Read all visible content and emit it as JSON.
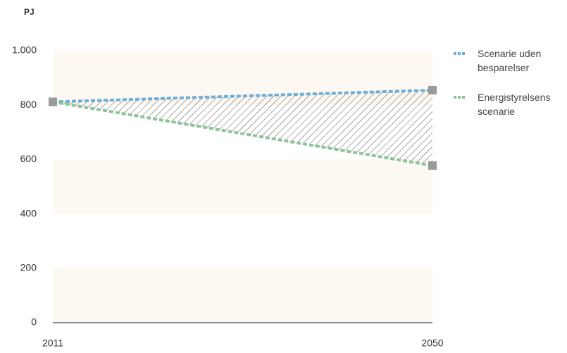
{
  "chart_data": {
    "type": "line",
    "y_label": "PJ",
    "x": [
      2011,
      2050
    ],
    "xlim": [
      2011,
      2050
    ],
    "xticks": [
      2011,
      2050
    ],
    "ylim": [
      0,
      1000
    ],
    "yticks": [
      0,
      200,
      400,
      600,
      800,
      {
        "value": 1000,
        "label": "1.000"
      }
    ],
    "series": [
      {
        "name": "Scenarie uden besparelser",
        "color": "#6aaee0",
        "values": [
          812,
          855
        ]
      },
      {
        "name": "Energistyrelsens scenarie",
        "color": "#8cc49a",
        "values": [
          812,
          578
        ]
      }
    ],
    "legend": "right"
  }
}
